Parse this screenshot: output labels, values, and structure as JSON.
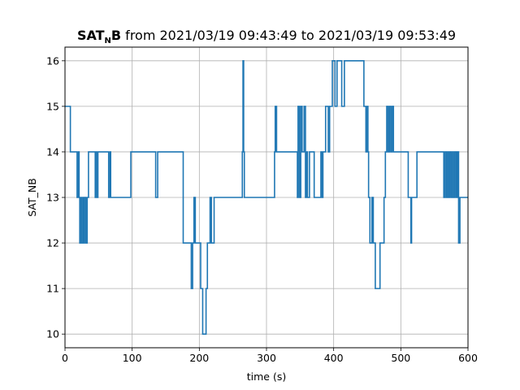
{
  "chart_data": {
    "type": "line",
    "title": {
      "name_main": "SAT",
      "name_sub": "N",
      "name_end": "B",
      "rest": " from 2021/03/19 09:43:49 to 2021/03/19 09:53:49"
    },
    "xlabel": "time (s)",
    "ylabel": "SAT_NB",
    "xlim": [
      0,
      600
    ],
    "ylim": [
      9.7,
      16.3
    ],
    "xticks": [
      0,
      100,
      200,
      300,
      400,
      500,
      600
    ],
    "yticks": [
      10,
      11,
      12,
      13,
      14,
      15,
      16
    ],
    "grid": true,
    "line_color": "#1f77b4",
    "series": [
      {
        "step": "post",
        "x": [
          0,
          8,
          18,
          20,
          21,
          22,
          24,
          25,
          27,
          28,
          29,
          31,
          33,
          35,
          45,
          46,
          47,
          49,
          51,
          53,
          65,
          67,
          68,
          70,
          98,
          135,
          138,
          176,
          188,
          190,
          192,
          194,
          196,
          202,
          205,
          210,
          212,
          216,
          218,
          222,
          225,
          264,
          265,
          266,
          267,
          268,
          270,
          272,
          274,
          276,
          278,
          280,
          282,
          283,
          284,
          286,
          287,
          289,
          291,
          293,
          295,
          297,
          299,
          301,
          303,
          305,
          306,
          312,
          313,
          315,
          346,
          347,
          349,
          351,
          353,
          356,
          358,
          360,
          361,
          364,
          366,
          369,
          371,
          381,
          382,
          384,
          385,
          388,
          392,
          394,
          396,
          398,
          402,
          405,
          410,
          412,
          416,
          418,
          420,
          421,
          422,
          425,
          427,
          429,
          431,
          433,
          435,
          445,
          448,
          450,
          451,
          452,
          454,
          457,
          459,
          462,
          463,
          464,
          466,
          469,
          475,
          477,
          479,
          481,
          483,
          485,
          487,
          489,
          491,
          493,
          495,
          497,
          499,
          501,
          503,
          505,
          507,
          509,
          511,
          513,
          515,
          516,
          518,
          520,
          522,
          524,
          530,
          532,
          564,
          566,
          568,
          570,
          571,
          573,
          575,
          577,
          578,
          580,
          582,
          583,
          584,
          585,
          586,
          588,
          589,
          590,
          592,
          600
        ],
        "y": [
          15,
          14,
          13,
          14,
          13,
          12,
          13,
          12,
          13,
          12,
          13,
          12,
          13,
          14,
          13,
          14,
          13,
          14,
          14,
          14,
          13,
          14,
          13,
          13,
          14,
          13,
          14,
          12,
          11,
          12,
          13,
          12,
          12,
          11,
          10,
          11,
          12,
          13,
          12,
          13,
          13,
          14,
          16,
          14,
          13,
          13,
          13,
          13,
          13,
          13,
          13,
          13,
          13,
          13,
          13,
          13,
          13,
          13,
          13,
          13,
          13,
          13,
          13,
          13,
          13,
          13,
          13,
          14,
          15,
          14,
          13,
          15,
          13,
          15,
          14,
          15,
          13,
          14,
          13,
          14,
          14,
          14,
          13,
          14,
          13,
          14,
          14,
          15,
          14,
          15,
          15,
          16,
          15,
          16,
          16,
          15,
          16,
          16,
          16,
          16,
          16,
          16,
          16,
          16,
          16,
          16,
          16,
          15,
          14,
          15,
          14,
          13,
          12,
          13,
          12,
          11,
          11,
          11,
          11,
          12,
          13,
          14,
          15,
          14,
          15,
          14,
          15,
          14,
          14,
          14,
          14,
          14,
          14,
          14,
          14,
          14,
          14,
          14,
          13,
          13,
          12,
          13,
          13,
          13,
          13,
          14,
          14,
          14,
          13,
          14,
          13,
          14,
          13,
          14,
          13,
          14,
          13,
          14,
          13,
          14,
          13,
          14,
          12,
          13,
          13,
          13,
          13,
          13
        ]
      }
    ]
  }
}
